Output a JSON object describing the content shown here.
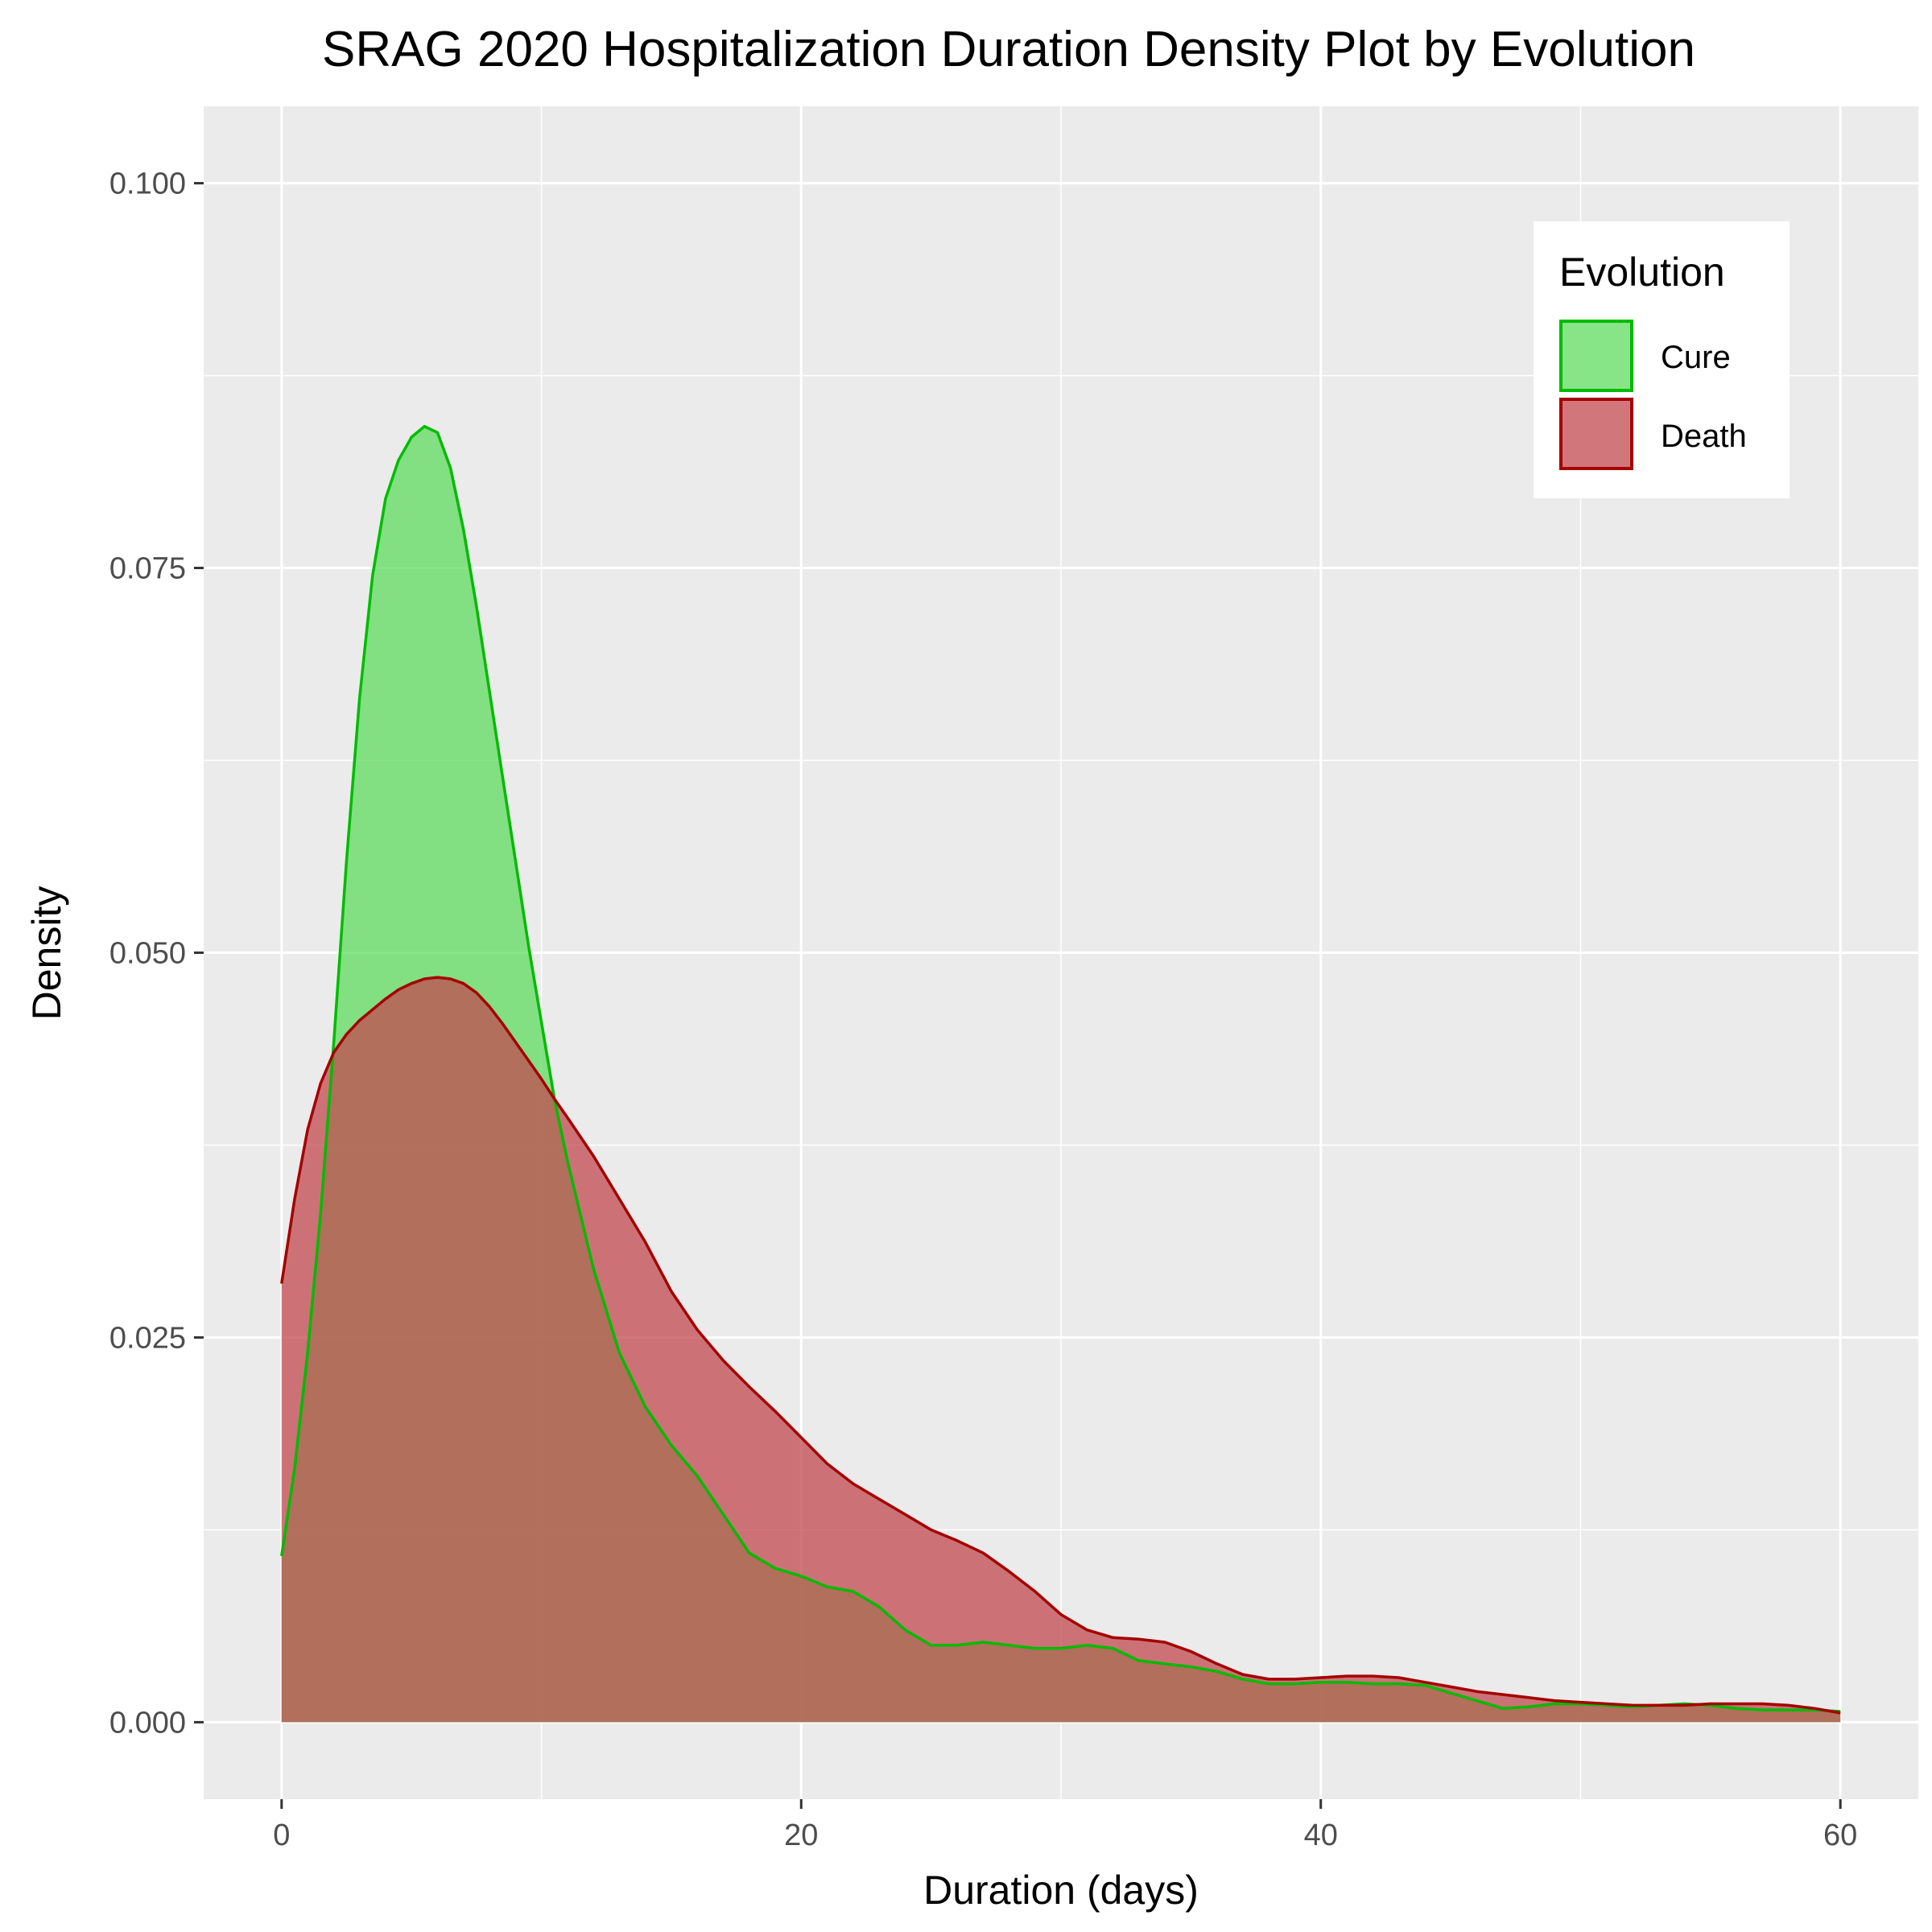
{
  "chart_data": {
    "type": "area",
    "title": "SRAG 2020 Hospitalization Duration Density Plot by Evolution",
    "xlabel": "Duration (days)",
    "ylabel": "Density",
    "xlim": [
      -3,
      63
    ],
    "ylim": [
      -0.005,
      0.105
    ],
    "x_ticks": [
      0,
      20,
      40,
      60
    ],
    "x_tick_labels": [
      "0",
      "20",
      "40",
      "60"
    ],
    "y_ticks": [
      0,
      0.025,
      0.05,
      0.075,
      0.1
    ],
    "y_tick_labels": [
      "0.000",
      "0.025",
      "0.050",
      "0.075",
      "0.100"
    ],
    "grid": true,
    "legend": {
      "title": "Evolution",
      "position": "top-right",
      "entries": [
        "Cure",
        "Death"
      ]
    },
    "colors": {
      "panel": "#EBEBEB",
      "grid": "#FFFFFF",
      "cure_fill": "#5FDB5F",
      "cure_line": "#00BB00",
      "death_fill": "#C24A4F",
      "death_line": "#A50000"
    },
    "series": [
      {
        "name": "Cure",
        "x": [
          0,
          0.5,
          1,
          1.5,
          2,
          2.5,
          3,
          3.5,
          4,
          4.5,
          5,
          5.5,
          6,
          6.5,
          7,
          7.5,
          8,
          8.5,
          9,
          9.5,
          10,
          10.5,
          11,
          12,
          13,
          14,
          15,
          16,
          17,
          18,
          19,
          20,
          21,
          22,
          23,
          24,
          25,
          26,
          27,
          28,
          29,
          30,
          31,
          32,
          33,
          34,
          35,
          36,
          37,
          38,
          39,
          40,
          41,
          42,
          43,
          44,
          45,
          46,
          47,
          48,
          49,
          50,
          51,
          52,
          53,
          54,
          55,
          56,
          57,
          58,
          59,
          60
        ],
        "y": [
          0.0108,
          0.0165,
          0.024,
          0.033,
          0.044,
          0.056,
          0.0665,
          0.0745,
          0.0795,
          0.082,
          0.0835,
          0.0842,
          0.0838,
          0.0815,
          0.0775,
          0.0725,
          0.067,
          0.0615,
          0.056,
          0.0505,
          0.0455,
          0.0405,
          0.0365,
          0.0295,
          0.024,
          0.0205,
          0.018,
          0.016,
          0.0135,
          0.011,
          0.01,
          0.0095,
          0.0088,
          0.0085,
          0.0075,
          0.006,
          0.005,
          0.005,
          0.0052,
          0.005,
          0.0048,
          0.0048,
          0.005,
          0.0048,
          0.004,
          0.0038,
          0.0036,
          0.0033,
          0.0028,
          0.0025,
          0.0025,
          0.0026,
          0.0026,
          0.0025,
          0.0025,
          0.0024,
          0.0019,
          0.0014,
          0.0009,
          0.001,
          0.0012,
          0.0012,
          0.0011,
          0.001,
          0.0011,
          0.0012,
          0.0011,
          0.0009,
          0.0008,
          0.0008,
          0.0008,
          0.0007
        ]
      },
      {
        "name": "Death",
        "x": [
          0,
          0.5,
          1,
          1.5,
          2,
          2.5,
          3,
          3.5,
          4,
          4.5,
          5,
          5.5,
          6,
          6.5,
          7,
          7.5,
          8,
          8.5,
          9,
          9.5,
          10,
          10.5,
          11,
          12,
          13,
          14,
          15,
          16,
          17,
          18,
          19,
          20,
          21,
          22,
          23,
          24,
          25,
          26,
          27,
          28,
          29,
          30,
          31,
          32,
          33,
          34,
          35,
          36,
          37,
          38,
          39,
          40,
          41,
          42,
          43,
          44,
          45,
          46,
          47,
          48,
          49,
          50,
          51,
          52,
          53,
          54,
          55,
          56,
          57,
          58,
          59,
          60
        ],
        "y": [
          0.0285,
          0.034,
          0.0385,
          0.0415,
          0.0435,
          0.0447,
          0.0456,
          0.0463,
          0.047,
          0.0476,
          0.048,
          0.0483,
          0.0484,
          0.0483,
          0.048,
          0.0474,
          0.0465,
          0.0454,
          0.0442,
          0.043,
          0.0418,
          0.0405,
          0.0393,
          0.0368,
          0.034,
          0.0312,
          0.028,
          0.0255,
          0.0235,
          0.0218,
          0.0202,
          0.0185,
          0.0168,
          0.0155,
          0.0145,
          0.0135,
          0.0125,
          0.0118,
          0.011,
          0.0098,
          0.0085,
          0.007,
          0.006,
          0.0055,
          0.0054,
          0.0052,
          0.0046,
          0.0038,
          0.0031,
          0.0028,
          0.0028,
          0.0029,
          0.003,
          0.003,
          0.0029,
          0.0026,
          0.0023,
          0.002,
          0.0018,
          0.0016,
          0.0014,
          0.0013,
          0.0012,
          0.0011,
          0.0011,
          0.0011,
          0.0012,
          0.0012,
          0.0012,
          0.0011,
          0.0009,
          0.0006
        ]
      }
    ]
  }
}
